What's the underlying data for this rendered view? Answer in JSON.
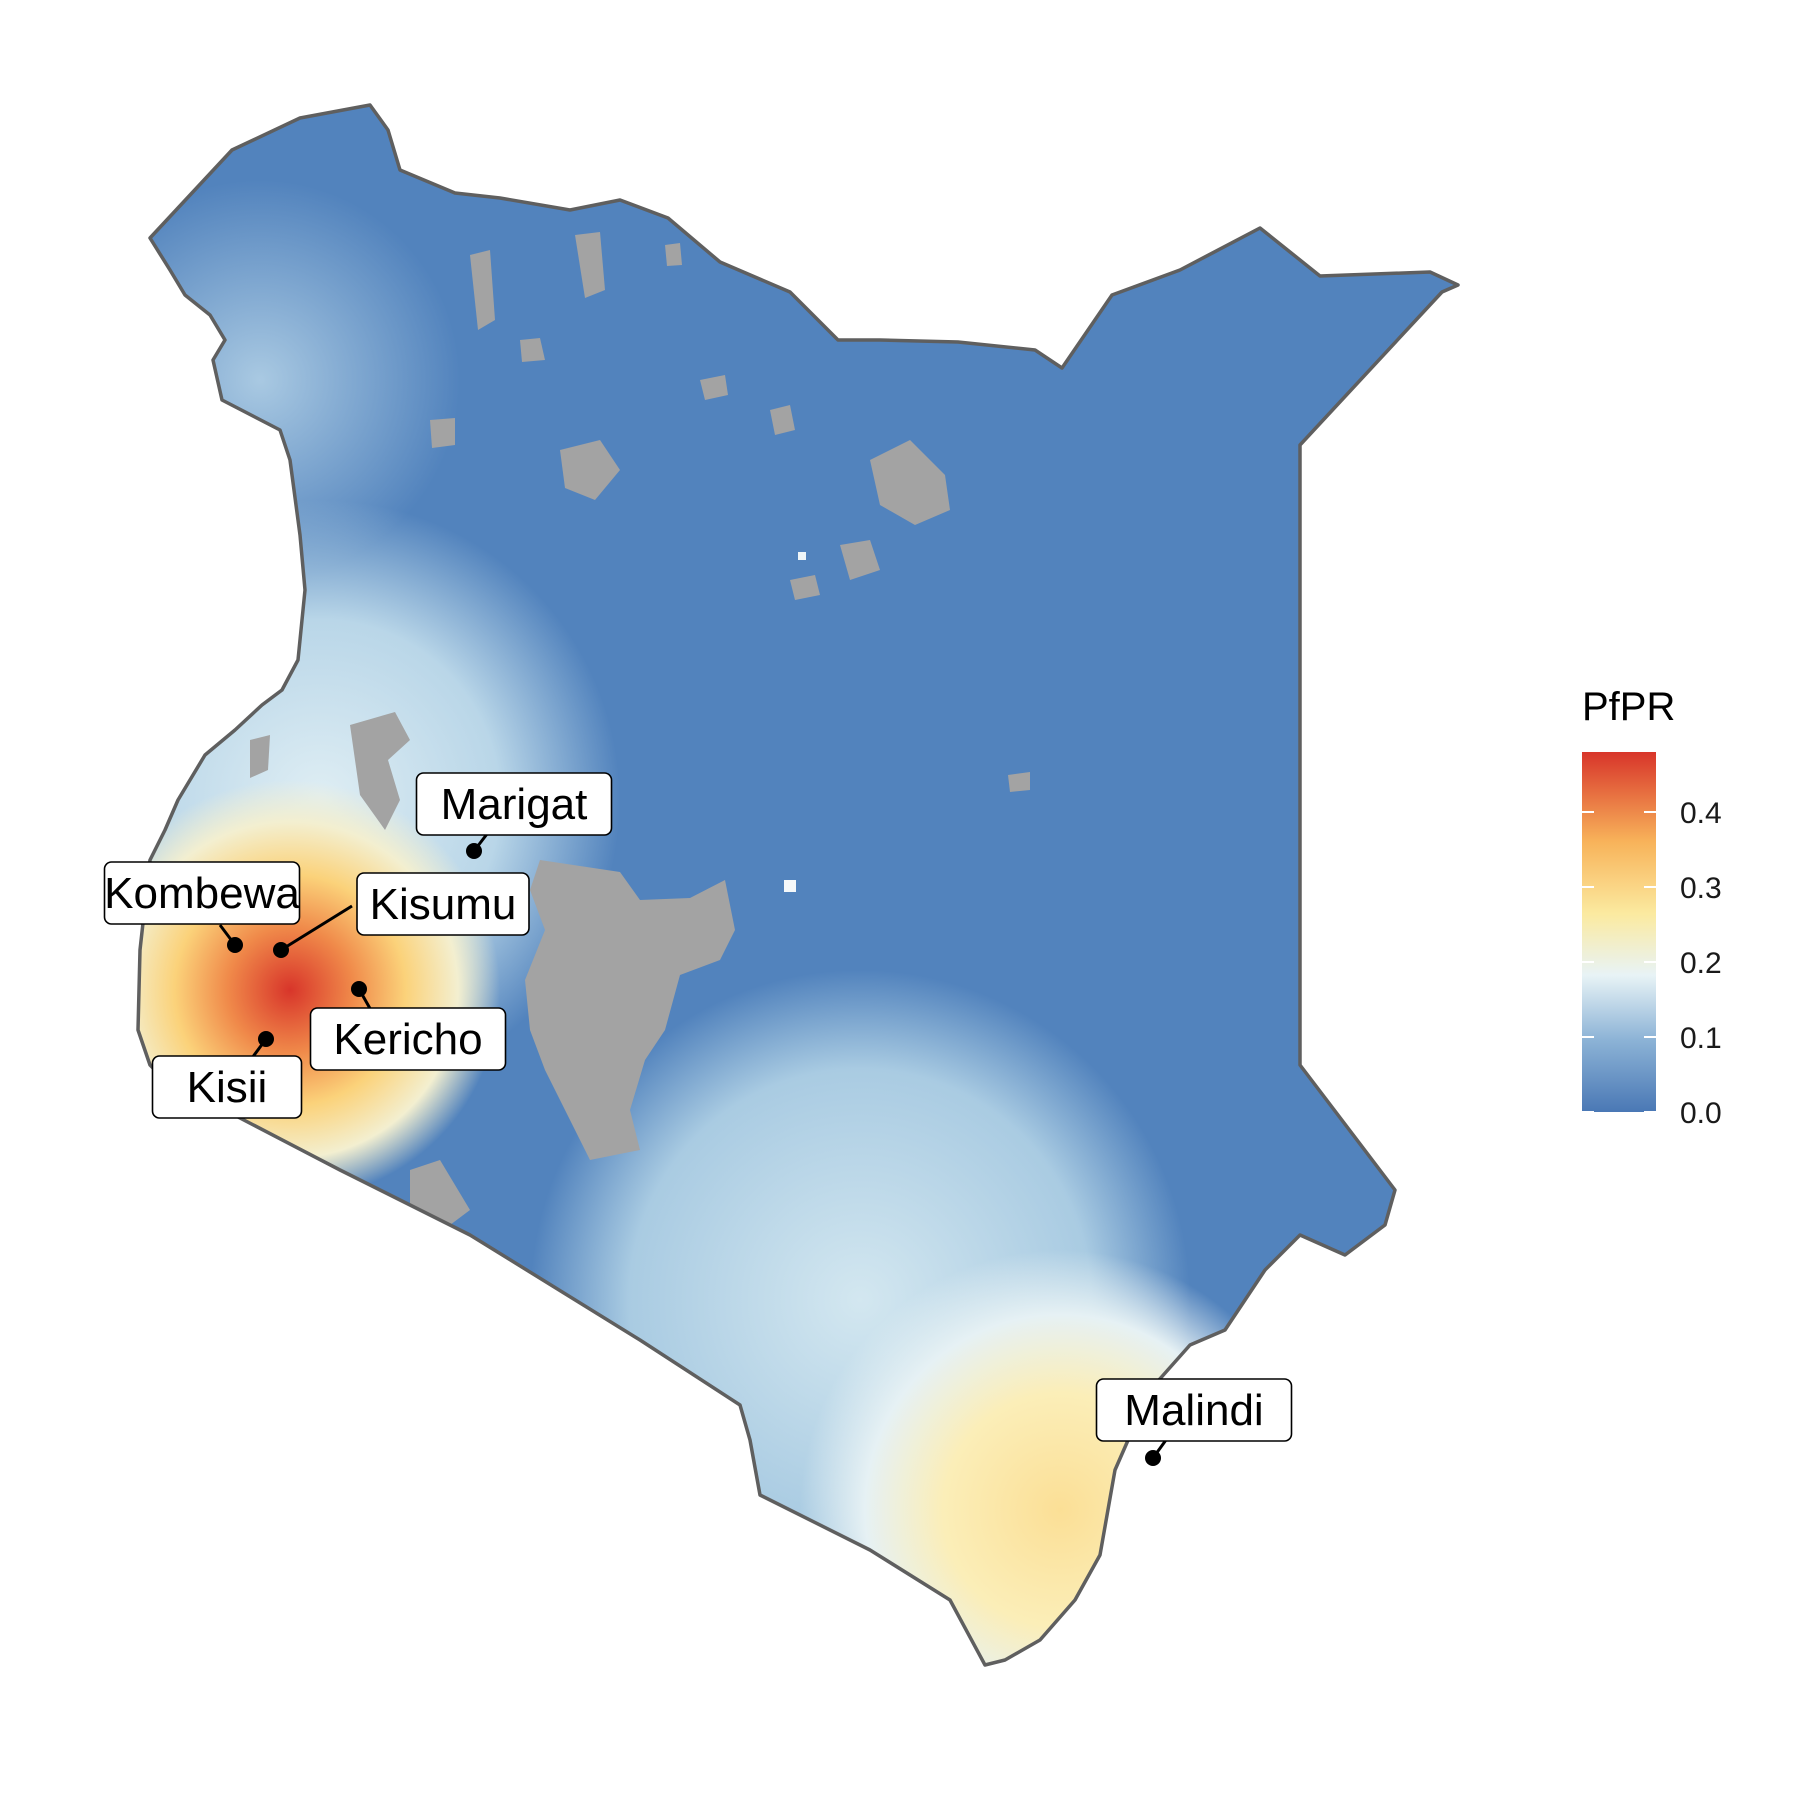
{
  "map": {
    "region": "Kenya",
    "fill_palette": [
      "#4a78b5",
      "#8cb3d6",
      "#e8f3f6",
      "#fbeaa0",
      "#f8b35a",
      "#d8352a"
    ],
    "missing_color": "#a3a3a3",
    "outline_color": "#5f5f5f"
  },
  "legend": {
    "title": "PfPR",
    "ticks": [
      "0.0",
      "0.1",
      "0.2",
      "0.3",
      "0.4"
    ],
    "tick_values": [
      0.0,
      0.1,
      0.2,
      0.3,
      0.4
    ],
    "max_value": 0.48,
    "gradient": [
      "#4a78b5",
      "#8cb3d6",
      "#e8f3f6",
      "#fbeaa0",
      "#f8b35a",
      "#d8352a"
    ]
  },
  "sites": [
    {
      "name": "Marigat"
    },
    {
      "name": "Kombewa"
    },
    {
      "name": "Kisumu"
    },
    {
      "name": "Kericho"
    },
    {
      "name": "Kisii"
    },
    {
      "name": "Malindi"
    }
  ]
}
